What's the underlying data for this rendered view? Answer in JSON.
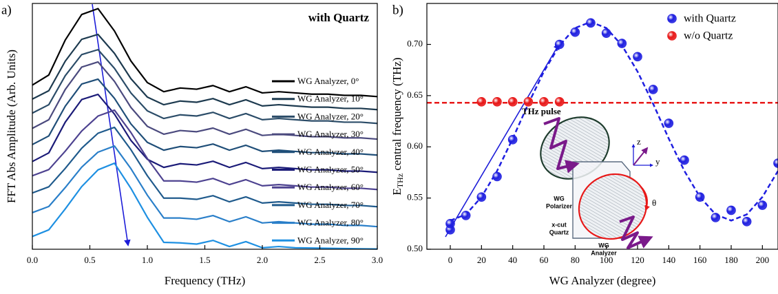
{
  "chart_data": [
    {
      "type": "line",
      "panel_label": "a)",
      "xlabel": "Frequency (THz)",
      "ylabel": "FFT Abs Amplitude (Arb. Units)",
      "annotation": "with Quartz",
      "annotation_color": "#1c1cd8",
      "x": [
        0,
        0.143,
        0.286,
        0.429,
        0.571,
        0.714,
        0.857,
        1.0,
        1.143,
        1.286,
        1.429,
        1.571,
        1.714,
        1.857,
        2.0,
        2.143,
        2.286,
        2.429,
        2.571,
        2.714,
        2.857,
        3.0
      ],
      "xlim": [
        0,
        3.0
      ],
      "xticks": [
        {
          "value": 0,
          "label": "0.0"
        },
        0.5,
        {
          "value": 1,
          "label": "1.0"
        },
        1.5,
        {
          "value": 2,
          "label": "2.0"
        },
        2.5,
        {
          "value": 3,
          "label": "3.0"
        }
      ],
      "ylim": [
        0,
        100
      ],
      "series": [
        {
          "name": "WG Analyzer, 0°",
          "color": "#000000",
          "values": [
            66.8,
            70.9,
            85.1,
            95.5,
            97.9,
            88.8,
            76.6,
            67.8,
            64.1,
            65.6,
            65.1,
            66.6,
            64.1,
            66.1,
            63.6,
            64.1,
            63.6,
            63.1,
            63.1,
            62.6,
            62.6,
            62.1
          ]
        },
        {
          "name": "WG Analyzer, 10°",
          "color": "#1d3a4f",
          "values": [
            61.1,
            64.5,
            76.5,
            85.4,
            87.4,
            79.7,
            69.4,
            61.9,
            58.8,
            60.3,
            59.8,
            61.3,
            58.8,
            60.8,
            58.3,
            58.8,
            58.3,
            57.8,
            57.8,
            57.3,
            57.3,
            56.8
          ]
        },
        {
          "name": "WG Analyzer, 20°",
          "color": "#2b4c68",
          "values": [
            55.4,
            58.8,
            70.6,
            79.2,
            81.2,
            73.6,
            63.6,
            56.3,
            53.2,
            54.7,
            54.2,
            55.7,
            53.2,
            55.2,
            52.7,
            53.2,
            52.7,
            52.2,
            52.2,
            51.7,
            51.7,
            51.2
          ]
        },
        {
          "name": "WG Analyzer, 30°",
          "color": "#4b4a7e",
          "values": [
            49.2,
            52.7,
            65.0,
            74.1,
            76.2,
            68.3,
            57.7,
            50.0,
            46.8,
            48.3,
            47.8,
            49.3,
            46.8,
            48.8,
            46.3,
            46.8,
            46.3,
            45.8,
            45.8,
            45.3,
            45.3,
            44.8
          ]
        },
        {
          "name": "WG Analyzer, 40°",
          "color": "#1f4e78",
          "values": [
            42.6,
            46.1,
            58.2,
            67.2,
            69.2,
            61.4,
            51.0,
            43.5,
            40.3,
            41.8,
            41.3,
            42.8,
            40.3,
            42.3,
            39.8,
            40.3,
            39.8,
            39.3,
            39.3,
            38.8,
            38.8,
            38.3
          ]
        },
        {
          "name": "WG Analyzer, 50°",
          "color": "#1b1b78",
          "values": [
            35.7,
            39.2,
            51.7,
            60.9,
            63.0,
            55.0,
            44.3,
            36.6,
            33.3,
            34.8,
            34.3,
            35.8,
            33.3,
            35.3,
            32.8,
            33.3,
            32.8,
            32.3,
            32.3,
            31.8,
            31.8,
            31.3
          ]
        },
        {
          "name": "WG Analyzer, 60°",
          "color": "#4d4290",
          "values": [
            29.9,
            32.4,
            39.9,
            48.1,
            54.2,
            56.6,
            47.5,
            36.9,
            27.8,
            27.8,
            27.3,
            28.8,
            26.3,
            28.3,
            25.8,
            26.3,
            25.8,
            25.3,
            25.3,
            24.8,
            24.8,
            24.3
          ]
        },
        {
          "name": "WG Analyzer, 70°",
          "color": "#1f5a8c",
          "values": [
            22.9,
            25.4,
            32.9,
            41.1,
            47.2,
            49.6,
            40.5,
            29.9,
            20.8,
            20.8,
            20.3,
            21.8,
            19.3,
            21.3,
            18.8,
            19.3,
            18.8,
            18.3,
            18.3,
            17.8,
            17.8,
            17.3
          ]
        },
        {
          "name": "WG Analyzer, 80°",
          "color": "#2a7fc9",
          "values": [
            14.9,
            17.4,
            25.1,
            33.4,
            39.5,
            42.0,
            32.8,
            22.0,
            12.7,
            12.7,
            12.2,
            13.7,
            11.2,
            13.2,
            10.7,
            11.2,
            10.7,
            10.2,
            10.2,
            9.7,
            9.7,
            9.2
          ]
        },
        {
          "name": "WG Analyzer, 90°",
          "color": "#1e90e2",
          "values": [
            5.2,
            7.9,
            16.4,
            25.5,
            32.3,
            35.0,
            24.8,
            13.0,
            2.8,
            2.6,
            2.1,
            3.6,
            1.1,
            3.1,
            0.6,
            1.1,
            0.6,
            0.5,
            0.4,
            0.3,
            0.2,
            0.1
          ]
        }
      ]
    },
    {
      "type": "scatter",
      "panel_label": "b)",
      "xlabel": "WG Analyzer (degree)",
      "ylabel": [
        "E",
        "THz",
        " central frequency (THz)"
      ],
      "xlim": [
        -15,
        210
      ],
      "xticks": [
        0,
        20,
        40,
        60,
        80,
        100,
        120,
        140,
        160,
        180,
        200
      ],
      "ylim": [
        0.5,
        0.74
      ],
      "yticks": [
        {
          "value": 0.5,
          "label": "0.50"
        },
        0.55,
        {
          "value": 0.6,
          "label": "0.60"
        },
        0.65,
        {
          "value": 0.7,
          "label": "0.70"
        }
      ],
      "series": [
        {
          "name": "with Quartz",
          "color": "#1f1fe0",
          "x": [
            0,
            0,
            10,
            20,
            30,
            40,
            70,
            80,
            90,
            100,
            110,
            120,
            130,
            140,
            150,
            160,
            170,
            180,
            190,
            200,
            210
          ],
          "values": [
            0.519,
            0.525,
            0.533,
            0.551,
            0.571,
            0.607,
            0.7,
            0.712,
            0.721,
            0.711,
            0.701,
            0.688,
            0.656,
            0.623,
            0.587,
            0.551,
            0.531,
            0.538,
            0.527,
            0.543,
            0.584
          ]
        },
        {
          "name": "w/o Quartz",
          "color": "#e81818",
          "x": [
            20,
            30,
            40,
            50,
            60,
            70
          ],
          "values": [
            0.644,
            0.644,
            0.644,
            0.644,
            0.644,
            0.644
          ]
        }
      ],
      "fit": {
        "color": "#1f1fe0",
        "x": [
          0,
          10,
          20,
          30,
          40,
          50,
          60,
          70,
          80,
          90,
          100,
          110,
          120,
          130,
          140,
          150,
          160,
          170,
          180,
          190,
          200,
          210
        ],
        "values": [
          0.528,
          0.534,
          0.551,
          0.5765,
          0.608,
          0.642,
          0.6735,
          0.699,
          0.716,
          0.722,
          0.716,
          0.699,
          0.6735,
          0.642,
          0.608,
          0.5765,
          0.551,
          0.534,
          0.528,
          0.534,
          0.551,
          0.5765
        ]
      },
      "reference_line": {
        "value": 0.643,
        "color": "#e81818"
      },
      "inset_labels": [
        "THz pulse",
        "WG",
        "Polarizer",
        "x-cut",
        "Quartz",
        "WG",
        "Analyzer",
        "θ",
        "z",
        "y"
      ]
    }
  ]
}
